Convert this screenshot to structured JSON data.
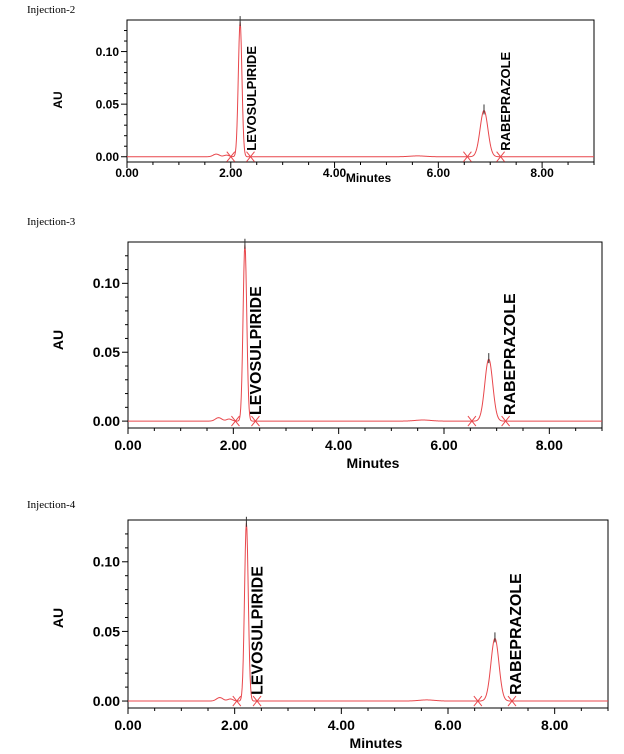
{
  "colors": {
    "trace": "#e8474c",
    "axis": "#000000"
  },
  "chart_data": [
    {
      "type": "line",
      "title": "Injection-2",
      "xlabel": "Minutes",
      "ylabel": "AU",
      "xlim": [
        0,
        9
      ],
      "ylim": [
        -0.005,
        0.13
      ],
      "xticks": [
        "0.00",
        "2.00",
        "4.00",
        "6.00",
        "8.00"
      ],
      "xtick_values": [
        0,
        2,
        4,
        6,
        8
      ],
      "yticks": [
        "0.00",
        "0.05",
        "0.10"
      ],
      "ytick_values": [
        0,
        0.05,
        0.1
      ],
      "peaks": [
        {
          "name": "LEVOSULPIRIDE",
          "rt": 2.18,
          "height": 0.128
        },
        {
          "name": "RABEPRAZOLE",
          "rt": 6.88,
          "height": 0.044
        }
      ]
    },
    {
      "type": "line",
      "title": "Injection-3",
      "xlabel": "Minutes",
      "ylabel": "AU",
      "xlim": [
        0,
        9
      ],
      "ylim": [
        -0.005,
        0.13
      ],
      "xticks": [
        "0.00",
        "2.00",
        "4.00",
        "6.00",
        "8.00"
      ],
      "xtick_values": [
        0,
        2,
        4,
        6,
        8
      ],
      "yticks": [
        "0.00",
        "0.05",
        "0.10"
      ],
      "ytick_values": [
        0,
        0.05,
        0.1
      ],
      "peaks": [
        {
          "name": "LEVOSULPIRIDE",
          "rt": 2.22,
          "height": 0.128
        },
        {
          "name": "RABEPRAZOLE",
          "rt": 6.85,
          "height": 0.045
        }
      ]
    },
    {
      "type": "line",
      "title": "Injection-4",
      "xlabel": "Minutes",
      "ylabel": "AU",
      "xlim": [
        0,
        9
      ],
      "ylim": [
        -0.005,
        0.13
      ],
      "xticks": [
        "0.00",
        "2.00",
        "4.00",
        "6.00",
        "8.00"
      ],
      "xtick_values": [
        0,
        2,
        4,
        6,
        8
      ],
      "yticks": [
        "0.00",
        "0.05",
        "0.10"
      ],
      "ytick_values": [
        0,
        0.05,
        0.1
      ],
      "peaks": [
        {
          "name": "LEVOSULPIRIDE",
          "rt": 2.22,
          "height": 0.128
        },
        {
          "name": "RABEPRAZOLE",
          "rt": 6.88,
          "height": 0.045
        }
      ]
    }
  ]
}
